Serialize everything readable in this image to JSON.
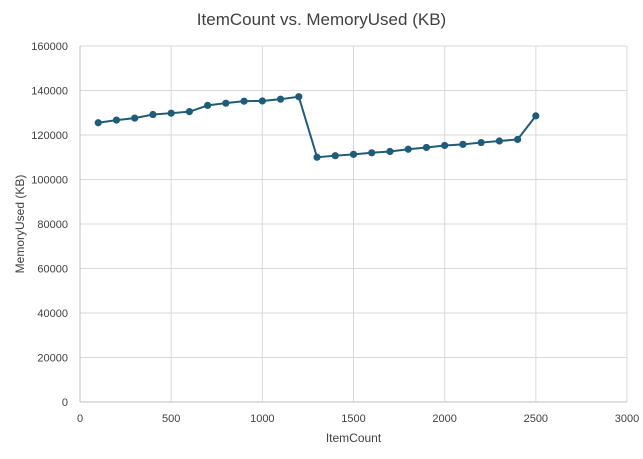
{
  "chart_data": {
    "type": "line",
    "title": "ItemCount vs. MemoryUsed (KB)",
    "xlabel": "ItemCount",
    "ylabel": "MemoryUsed (KB)",
    "xlim": [
      0,
      3000
    ],
    "ylim": [
      0,
      160000
    ],
    "x_ticks": [
      0,
      500,
      1000,
      1500,
      2000,
      2500,
      3000
    ],
    "y_ticks": [
      0,
      20000,
      40000,
      60000,
      80000,
      100000,
      120000,
      140000,
      160000
    ],
    "grid": "vertical and horizontal",
    "legend": "none",
    "colors": {
      "series": "#1f5c7a",
      "grid": "#d9d9d9",
      "text": "#404040"
    },
    "series": [
      {
        "x": [
          100,
          200,
          300,
          400,
          500,
          600,
          700,
          800,
          900,
          1000,
          1100,
          1200,
          1300,
          1400,
          1500,
          1600,
          1700,
          1800,
          1900,
          2000,
          2100,
          2200,
          2300,
          2400,
          2500
        ],
        "y": [
          125500,
          126700,
          127600,
          129200,
          129800,
          130500,
          133300,
          134300,
          135200,
          135300,
          136100,
          137200,
          110000,
          110700,
          111300,
          112000,
          112600,
          113600,
          114400,
          115300,
          115800,
          116600,
          117300,
          118000,
          128600
        ]
      }
    ]
  }
}
